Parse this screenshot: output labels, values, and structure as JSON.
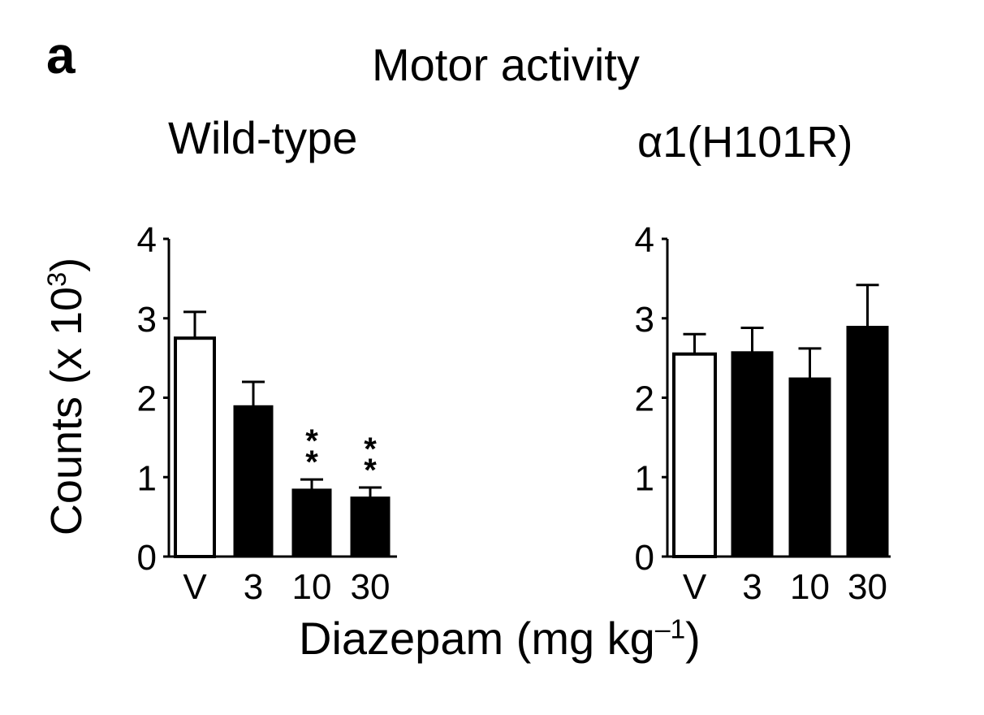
{
  "panel_letter": "a",
  "title": "Motor activity",
  "ylabel_main": "Counts (x 10",
  "ylabel_sup": "3",
  "ylabel_end": ")",
  "xlabel_main": "Diazepam (mg kg",
  "xlabel_sup": "–1",
  "xlabel_end": ")",
  "colors": {
    "vehicle_fill": "#ffffff",
    "drug_fill": "#000000",
    "stroke": "#000000"
  },
  "chart_data": [
    {
      "type": "bar",
      "title": "Wild-type",
      "categories": [
        "V",
        "3",
        "10",
        "30"
      ],
      "values": [
        2.75,
        1.9,
        0.85,
        0.75
      ],
      "errors": [
        0.33,
        0.3,
        0.12,
        0.12
      ],
      "fills": [
        "white",
        "black",
        "black",
        "black"
      ],
      "annotations": [
        "",
        "",
        "**",
        "**"
      ],
      "ylim": [
        0,
        4
      ],
      "yticks": [
        0,
        1,
        2,
        3,
        4
      ],
      "ylabel": "Counts (x 10³)",
      "xlabel": "Diazepam (mg kg–1)"
    },
    {
      "type": "bar",
      "title": "α1(H101R)",
      "categories": [
        "V",
        "3",
        "10",
        "30"
      ],
      "values": [
        2.55,
        2.58,
        2.25,
        2.9
      ],
      "errors": [
        0.25,
        0.3,
        0.37,
        0.52
      ],
      "fills": [
        "white",
        "black",
        "black",
        "black"
      ],
      "annotations": [
        "",
        "",
        "",
        ""
      ],
      "ylim": [
        0,
        4
      ],
      "yticks": [
        0,
        1,
        2,
        3,
        4
      ],
      "xlabel": "Diazepam (mg kg–1)"
    }
  ]
}
